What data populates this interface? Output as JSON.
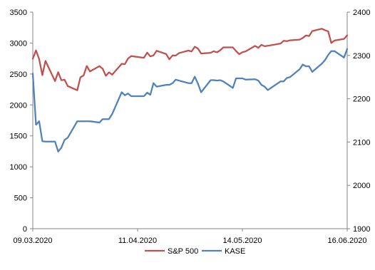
{
  "chart_data": {
    "type": "line",
    "title": "",
    "xlabel": "",
    "ylabel_left": "",
    "ylabel_right": "",
    "x_tick_labels": [
      "09.03.2020",
      "11.04.2020",
      "14.05.2020",
      "16.06.2020"
    ],
    "x_ticks": [
      "2020-03-09",
      "2020-04-11",
      "2020-05-14",
      "2020-06-16"
    ],
    "ylim_left": [
      0,
      3500
    ],
    "yticks_left": [
      0,
      500,
      1000,
      1500,
      2000,
      2500,
      3000,
      3500
    ],
    "ylim_right": [
      1900,
      2400
    ],
    "yticks_right": [
      1900,
      2000,
      2100,
      2200,
      2300,
      2400
    ],
    "grid": false,
    "legend_position": "bottom",
    "series": [
      {
        "name": "S&P 500",
        "axis": "left",
        "color": "#c0504d",
        "points": [
          [
            "2020-03-09",
            2746
          ],
          [
            "2020-03-10",
            2882
          ],
          [
            "2020-03-11",
            2741
          ],
          [
            "2020-03-12",
            2481
          ],
          [
            "2020-03-13",
            2711
          ],
          [
            "2020-03-16",
            2386
          ],
          [
            "2020-03-17",
            2529
          ],
          [
            "2020-03-18",
            2398
          ],
          [
            "2020-03-19",
            2409
          ],
          [
            "2020-03-20",
            2305
          ],
          [
            "2020-03-23",
            2237
          ],
          [
            "2020-03-24",
            2447
          ],
          [
            "2020-03-25",
            2476
          ],
          [
            "2020-03-26",
            2630
          ],
          [
            "2020-03-27",
            2541
          ],
          [
            "2020-03-30",
            2627
          ],
          [
            "2020-03-31",
            2585
          ],
          [
            "2020-04-01",
            2471
          ],
          [
            "2020-04-02",
            2527
          ],
          [
            "2020-04-03",
            2489
          ],
          [
            "2020-04-06",
            2664
          ],
          [
            "2020-04-07",
            2660
          ],
          [
            "2020-04-08",
            2750
          ],
          [
            "2020-04-09",
            2790
          ],
          [
            "2020-04-13",
            2762
          ],
          [
            "2020-04-14",
            2846
          ],
          [
            "2020-04-15",
            2784
          ],
          [
            "2020-04-16",
            2800
          ],
          [
            "2020-04-17",
            2875
          ],
          [
            "2020-04-20",
            2823
          ],
          [
            "2020-04-21",
            2737
          ],
          [
            "2020-04-22",
            2800
          ],
          [
            "2020-04-23",
            2798
          ],
          [
            "2020-04-24",
            2837
          ],
          [
            "2020-04-27",
            2878
          ],
          [
            "2020-04-28",
            2863
          ],
          [
            "2020-04-29",
            2940
          ],
          [
            "2020-04-30",
            2912
          ],
          [
            "2020-05-01",
            2831
          ],
          [
            "2020-05-04",
            2843
          ],
          [
            "2020-05-05",
            2868
          ],
          [
            "2020-05-06",
            2849
          ],
          [
            "2020-05-07",
            2882
          ],
          [
            "2020-05-08",
            2930
          ],
          [
            "2020-05-11",
            2930
          ],
          [
            "2020-05-12",
            2870
          ],
          [
            "2020-05-13",
            2820
          ],
          [
            "2020-05-14",
            2852
          ],
          [
            "2020-05-15",
            2864
          ],
          [
            "2020-05-18",
            2954
          ],
          [
            "2020-05-19",
            2922
          ],
          [
            "2020-05-20",
            2972
          ],
          [
            "2020-05-21",
            2949
          ],
          [
            "2020-05-22",
            2955
          ],
          [
            "2020-05-26",
            2992
          ],
          [
            "2020-05-27",
            3036
          ],
          [
            "2020-05-28",
            3030
          ],
          [
            "2020-05-29",
            3044
          ],
          [
            "2020-06-01",
            3056
          ],
          [
            "2020-06-02",
            3081
          ],
          [
            "2020-06-03",
            3123
          ],
          [
            "2020-06-04",
            3112
          ],
          [
            "2020-06-05",
            3194
          ],
          [
            "2020-06-08",
            3232
          ],
          [
            "2020-06-09",
            3208
          ],
          [
            "2020-06-10",
            3190
          ],
          [
            "2020-06-11",
            3002
          ],
          [
            "2020-06-12",
            3041
          ],
          [
            "2020-06-15",
            3067
          ],
          [
            "2020-06-16",
            3125
          ]
        ]
      },
      {
        "name": "KASE",
        "axis": "right",
        "color": "#4f81bd",
        "points": [
          [
            "2020-03-09",
            2258
          ],
          [
            "2020-03-10",
            2140
          ],
          [
            "2020-03-11",
            2148
          ],
          [
            "2020-03-12",
            2102
          ],
          [
            "2020-03-13",
            2101
          ],
          [
            "2020-03-16",
            2101
          ],
          [
            "2020-03-17",
            2078
          ],
          [
            "2020-03-18",
            2087
          ],
          [
            "2020-03-19",
            2105
          ],
          [
            "2020-03-20",
            2110
          ],
          [
            "2020-03-23",
            2148
          ],
          [
            "2020-03-24",
            2148
          ],
          [
            "2020-03-25",
            2148
          ],
          [
            "2020-03-26",
            2148
          ],
          [
            "2020-03-27",
            2148
          ],
          [
            "2020-03-30",
            2145
          ],
          [
            "2020-03-31",
            2153
          ],
          [
            "2020-04-01",
            2153
          ],
          [
            "2020-04-02",
            2153
          ],
          [
            "2020-04-03",
            2165
          ],
          [
            "2020-04-06",
            2215
          ],
          [
            "2020-04-07",
            2208
          ],
          [
            "2020-04-08",
            2212
          ],
          [
            "2020-04-09",
            2206
          ],
          [
            "2020-04-13",
            2206
          ],
          [
            "2020-04-14",
            2214
          ],
          [
            "2020-04-15",
            2209
          ],
          [
            "2020-04-16",
            2236
          ],
          [
            "2020-04-17",
            2228
          ],
          [
            "2020-04-20",
            2232
          ],
          [
            "2020-04-21",
            2232
          ],
          [
            "2020-04-22",
            2236
          ],
          [
            "2020-04-23",
            2244
          ],
          [
            "2020-04-24",
            2242
          ],
          [
            "2020-04-27",
            2236
          ],
          [
            "2020-04-28",
            2236
          ],
          [
            "2020-04-29",
            2251
          ],
          [
            "2020-04-30",
            2235
          ],
          [
            "2020-05-01",
            2215
          ],
          [
            "2020-05-04",
            2243
          ],
          [
            "2020-05-05",
            2243
          ],
          [
            "2020-05-06",
            2242
          ],
          [
            "2020-05-07",
            2243
          ],
          [
            "2020-05-08",
            2240
          ],
          [
            "2020-05-11",
            2225
          ],
          [
            "2020-05-12",
            2247
          ],
          [
            "2020-05-13",
            2247
          ],
          [
            "2020-05-14",
            2247
          ],
          [
            "2020-05-15",
            2244
          ],
          [
            "2020-05-18",
            2245
          ],
          [
            "2020-05-19",
            2242
          ],
          [
            "2020-05-20",
            2232
          ],
          [
            "2020-05-21",
            2228
          ],
          [
            "2020-05-22",
            2220
          ],
          [
            "2020-05-26",
            2240
          ],
          [
            "2020-05-27",
            2240
          ],
          [
            "2020-05-28",
            2248
          ],
          [
            "2020-05-29",
            2250
          ],
          [
            "2020-06-01",
            2268
          ],
          [
            "2020-06-02",
            2279
          ],
          [
            "2020-06-03",
            2275
          ],
          [
            "2020-06-04",
            2275
          ],
          [
            "2020-06-05",
            2262
          ],
          [
            "2020-06-08",
            2281
          ],
          [
            "2020-06-09",
            2289
          ],
          [
            "2020-06-10",
            2301
          ],
          [
            "2020-06-11",
            2310
          ],
          [
            "2020-06-12",
            2310
          ],
          [
            "2020-06-15",
            2295
          ],
          [
            "2020-06-16",
            2315
          ]
        ]
      }
    ]
  }
}
